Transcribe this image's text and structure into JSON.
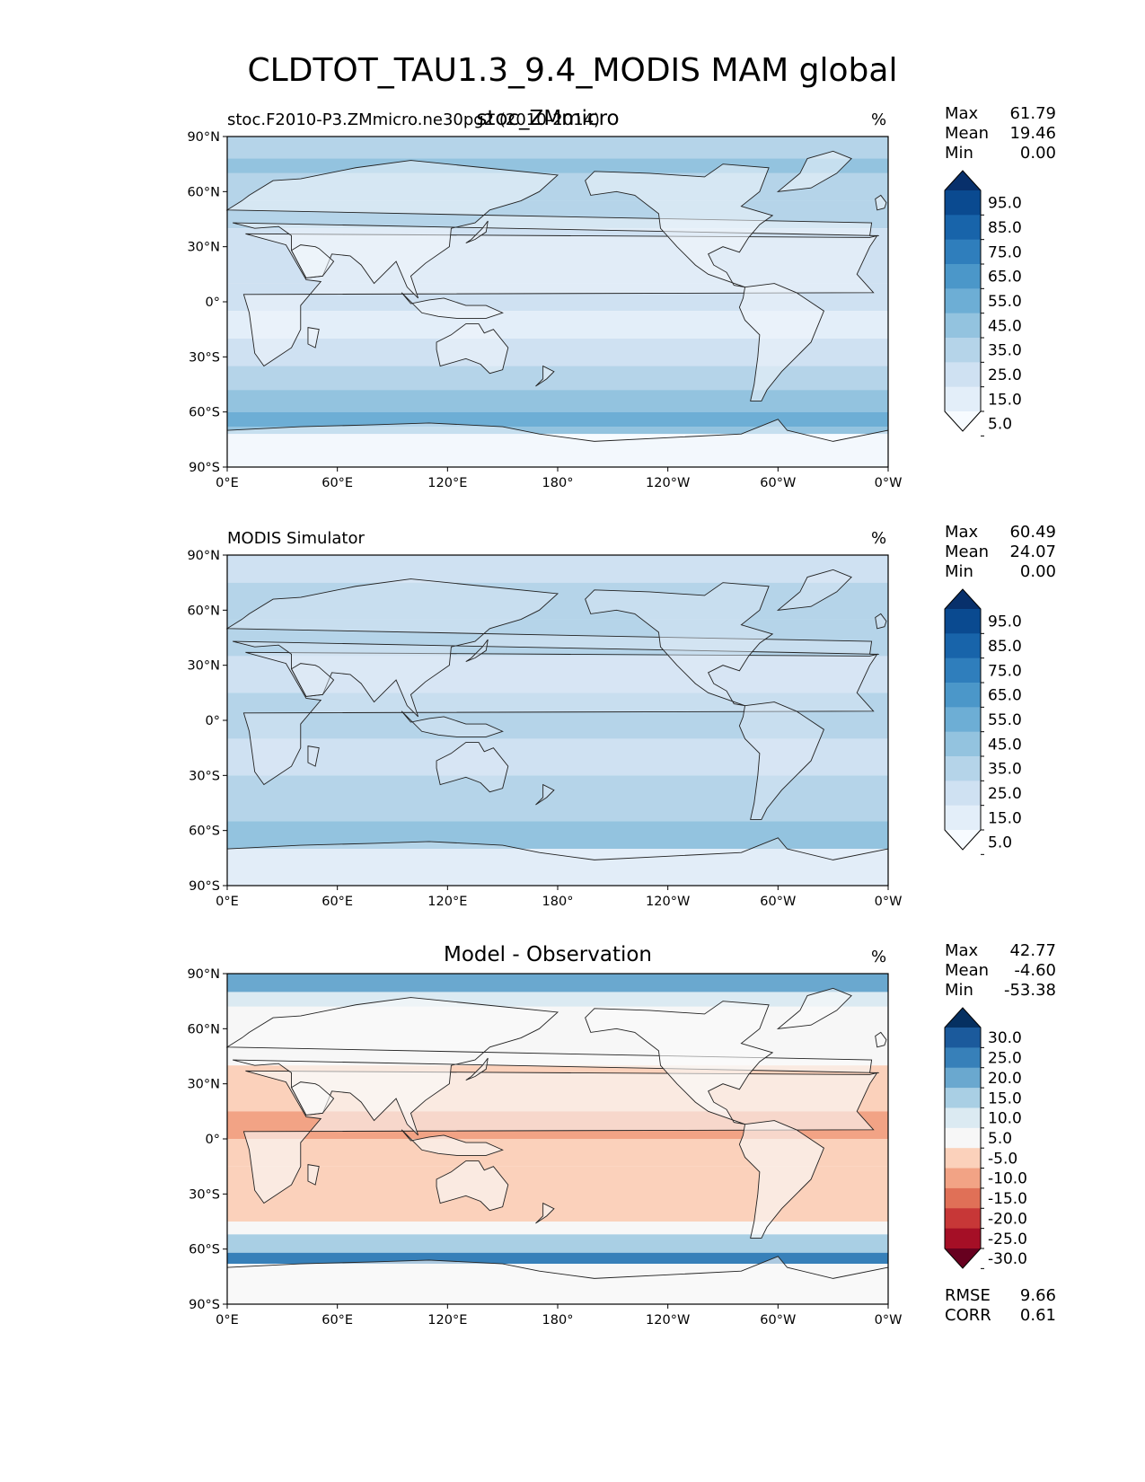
{
  "suptitle": "CLDTOT_TAU1.3_9.4_MODIS MAM global",
  "chart_data": [
    {
      "type": "heatmap",
      "panel": "test",
      "title_left": "stoc.F2010-P3.ZMmicro.ne30pg2 (2010-2014)",
      "title_center": "stoc_ZMmicro",
      "units": "%",
      "stats": {
        "max_label": "Max",
        "max": "61.79",
        "mean_label": "Mean",
        "mean": "19.46",
        "min_label": "Min",
        "min": "0.00"
      },
      "x_ticks": [
        "0°E",
        "60°E",
        "120°E",
        "180°",
        "120°W",
        "60°W",
        "0°W"
      ],
      "y_ticks": [
        "90°N",
        "60°N",
        "30°N",
        "0°",
        "30°S",
        "60°S",
        "90°S"
      ],
      "xlim": [
        0,
        360
      ],
      "ylim": [
        -90,
        90
      ],
      "colormap": "Blues",
      "levels": [
        "5.0",
        "15.0",
        "25.0",
        "35.0",
        "45.0",
        "55.0",
        "65.0",
        "75.0",
        "85.0",
        "95.0"
      ],
      "colors": [
        "#f7fbff",
        "#e3eef9",
        "#cfe1f2",
        "#b5d4e9",
        "#93c3df",
        "#6daed5",
        "#4b97c9",
        "#2f7ebc",
        "#1864aa",
        "#0a4a90",
        "#08306b"
      ],
      "bands": [
        {
          "lat": [
            90,
            78
          ],
          "value": 28
        },
        {
          "lat": [
            78,
            70
          ],
          "value": 35
        },
        {
          "lat": [
            70,
            55
          ],
          "value": 28
        },
        {
          "lat": [
            55,
            40
          ],
          "value": 25
        },
        {
          "lat": [
            40,
            10
          ],
          "value": 15
        },
        {
          "lat": [
            10,
            -5
          ],
          "value": 20
        },
        {
          "lat": [
            -5,
            -20
          ],
          "value": 12
        },
        {
          "lat": [
            -20,
            -35
          ],
          "value": 22
        },
        {
          "lat": [
            -35,
            -48
          ],
          "value": 30
        },
        {
          "lat": [
            -48,
            -60
          ],
          "value": 38
        },
        {
          "lat": [
            -60,
            -68
          ],
          "value": 48
        },
        {
          "lat": [
            -68,
            -72
          ],
          "value": 40
        },
        {
          "lat": [
            -72,
            -90
          ],
          "value": 4
        }
      ]
    },
    {
      "type": "heatmap",
      "panel": "reference",
      "title_left": "MODIS Simulator",
      "units": "%",
      "stats": {
        "max_label": "Max",
        "max": "60.49",
        "mean_label": "Mean",
        "mean": "24.07",
        "min_label": "Min",
        "min": "0.00"
      },
      "x_ticks": [
        "0°E",
        "60°E",
        "120°E",
        "180°",
        "120°W",
        "60°W",
        "0°W"
      ],
      "y_ticks": [
        "90°N",
        "60°N",
        "30°N",
        "0°",
        "30°S",
        "60°S",
        "90°S"
      ],
      "xlim": [
        0,
        360
      ],
      "ylim": [
        -90,
        90
      ],
      "colormap": "Blues",
      "levels": [
        "5.0",
        "15.0",
        "25.0",
        "35.0",
        "45.0",
        "55.0",
        "65.0",
        "75.0",
        "85.0",
        "95.0"
      ],
      "colors": [
        "#f7fbff",
        "#e3eef9",
        "#cfe1f2",
        "#b5d4e9",
        "#93c3df",
        "#6daed5",
        "#4b97c9",
        "#2f7ebc",
        "#1864aa",
        "#0a4a90",
        "#08306b"
      ],
      "bands": [
        {
          "lat": [
            90,
            75
          ],
          "value": 22
        },
        {
          "lat": [
            75,
            55
          ],
          "value": 30
        },
        {
          "lat": [
            55,
            35
          ],
          "value": 32
        },
        {
          "lat": [
            35,
            15
          ],
          "value": 22
        },
        {
          "lat": [
            15,
            -10
          ],
          "value": 32
        },
        {
          "lat": [
            -10,
            -30
          ],
          "value": 24
        },
        {
          "lat": [
            -30,
            -55
          ],
          "value": 33
        },
        {
          "lat": [
            -55,
            -70
          ],
          "value": 36
        },
        {
          "lat": [
            -70,
            -90
          ],
          "value": 10
        }
      ]
    },
    {
      "type": "heatmap",
      "panel": "difference",
      "title_center": "Model - Observation",
      "units": "%",
      "stats": {
        "max_label": "Max",
        "max": "42.77",
        "mean_label": "Mean",
        "mean": "-4.60",
        "min_label": "Min",
        "min": "-53.38"
      },
      "x_ticks": [
        "0°E",
        "60°E",
        "120°E",
        "180°",
        "120°W",
        "60°W",
        "0°W"
      ],
      "y_ticks": [
        "90°N",
        "60°N",
        "30°N",
        "0°",
        "30°S",
        "60°S",
        "90°S"
      ],
      "xlim": [
        0,
        360
      ],
      "ylim": [
        -90,
        90
      ],
      "colormap": "RdBu",
      "levels": [
        "-30.0",
        "-25.0",
        "-20.0",
        "-15.0",
        "-10.0",
        "-5.0",
        "5.0",
        "10.0",
        "15.0",
        "20.0",
        "25.0",
        "30.0"
      ],
      "colors": [
        "#67001f",
        "#a50f26",
        "#c73737",
        "#e07057",
        "#f2a385",
        "#fbd1bb",
        "#f7f7f7",
        "#dbeaf2",
        "#a9cfe4",
        "#6aa8cf",
        "#3780b9",
        "#1b5a9c",
        "#053061"
      ],
      "bands": [
        {
          "lat": [
            90,
            80
          ],
          "value": 18
        },
        {
          "lat": [
            80,
            72
          ],
          "value": 8
        },
        {
          "lat": [
            72,
            55
          ],
          "value": 4
        },
        {
          "lat": [
            55,
            40
          ],
          "value": 0
        },
        {
          "lat": [
            40,
            15
          ],
          "value": -8
        },
        {
          "lat": [
            15,
            0
          ],
          "value": -14
        },
        {
          "lat": [
            0,
            -15
          ],
          "value": -7
        },
        {
          "lat": [
            -15,
            -45
          ],
          "value": -8
        },
        {
          "lat": [
            -45,
            -52
          ],
          "value": 0
        },
        {
          "lat": [
            -52,
            -62
          ],
          "value": 12
        },
        {
          "lat": [
            -62,
            -68
          ],
          "value": 22
        },
        {
          "lat": [
            -68,
            -78
          ],
          "value": -4
        },
        {
          "lat": [
            -78,
            -90
          ],
          "value": -2
        }
      ],
      "metrics": {
        "rmse_label": "RMSE",
        "rmse": "9.66",
        "corr_label": "CORR",
        "corr": "0.61"
      }
    }
  ]
}
